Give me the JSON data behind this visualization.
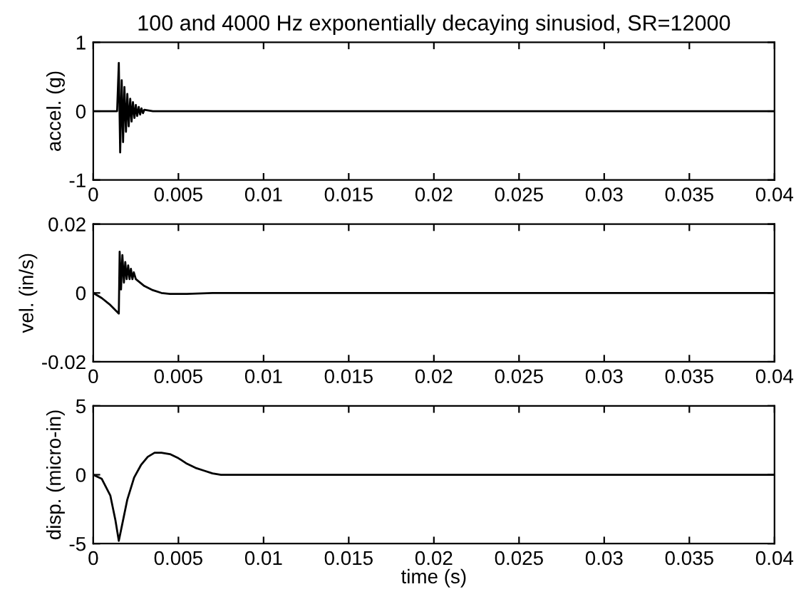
{
  "chart_data": [
    {
      "type": "line",
      "title": "100 and 4000 Hz exponentially decaying sinusiod, SR=12000",
      "ylabel": "accel. (g)",
      "xlim": [
        0,
        0.04
      ],
      "ylim": [
        -1,
        1
      ],
      "xticks": [
        0,
        0.005,
        0.01,
        0.015,
        0.02,
        0.025,
        0.03,
        0.035,
        0.04
      ],
      "yticks": [
        -1,
        0,
        1
      ],
      "grid": false,
      "legend": false,
      "series": [
        {
          "color": "#000000",
          "x": [
            0,
            0.0014,
            0.0015,
            0.00158,
            0.00167,
            0.00175,
            0.00183,
            0.00192,
            0.002,
            0.00208,
            0.00217,
            0.00225,
            0.00233,
            0.00242,
            0.0025,
            0.00258,
            0.00267,
            0.00275,
            0.00283,
            0.00292,
            0.003,
            0.0035,
            0.04
          ],
          "values": [
            0,
            0,
            0.7,
            -0.6,
            0.45,
            -0.45,
            0.35,
            -0.3,
            0.25,
            -0.22,
            0.18,
            -0.15,
            0.13,
            -0.1,
            0.09,
            -0.07,
            0.06,
            -0.05,
            0.04,
            -0.03,
            0.02,
            0,
            0
          ]
        }
      ]
    },
    {
      "type": "line",
      "ylabel": "vel. (in/s)",
      "xlim": [
        0,
        0.04
      ],
      "ylim": [
        -0.02,
        0.02
      ],
      "xticks": [
        0,
        0.005,
        0.01,
        0.015,
        0.02,
        0.025,
        0.03,
        0.035,
        0.04
      ],
      "yticks": [
        -0.02,
        0,
        0.02
      ],
      "grid": false,
      "legend": false,
      "series": [
        {
          "color": "#000000",
          "x": [
            0,
            0.0005,
            0.001,
            0.0015,
            0.00155,
            0.00163,
            0.00171,
            0.0018,
            0.00188,
            0.00196,
            0.00205,
            0.00213,
            0.00221,
            0.0023,
            0.00238,
            0.0025,
            0.003,
            0.0035,
            0.004,
            0.0045,
            0.0055,
            0.007,
            0.04
          ],
          "values": [
            0,
            -0.0015,
            -0.0035,
            -0.006,
            0.012,
            0.001,
            0.011,
            0.003,
            0.009,
            0.004,
            0.008,
            0.004,
            0.007,
            0.004,
            0.006,
            0.004,
            0.002,
            0.0008,
            0,
            -0.0003,
            -0.0003,
            0,
            0
          ]
        }
      ]
    },
    {
      "type": "line",
      "ylabel": "disp. (micro-in)",
      "xlabel": "time (s)",
      "xlim": [
        0,
        0.04
      ],
      "ylim": [
        -5,
        5
      ],
      "xticks": [
        0,
        0.005,
        0.01,
        0.015,
        0.02,
        0.025,
        0.03,
        0.035,
        0.04
      ],
      "yticks": [
        -5,
        0,
        5
      ],
      "grid": false,
      "legend": false,
      "series": [
        {
          "color": "#000000",
          "x": [
            0,
            0.0005,
            0.001,
            0.0013,
            0.0015,
            0.0017,
            0.002,
            0.0024,
            0.0028,
            0.0032,
            0.0036,
            0.004,
            0.0045,
            0.005,
            0.0055,
            0.006,
            0.0065,
            0.007,
            0.0075,
            0.008,
            0.009,
            0.01,
            0.04
          ],
          "values": [
            0,
            -0.3,
            -1.5,
            -3.3,
            -4.8,
            -3.6,
            -1.8,
            -0.2,
            0.7,
            1.3,
            1.6,
            1.6,
            1.5,
            1.2,
            0.8,
            0.5,
            0.3,
            0.1,
            0,
            0,
            0,
            0,
            0
          ]
        }
      ]
    }
  ]
}
